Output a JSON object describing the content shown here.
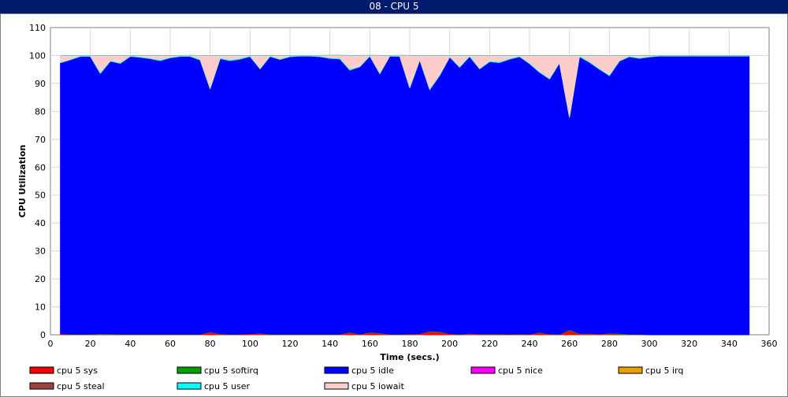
{
  "window": {
    "title": "08 - CPU 5"
  },
  "chart_data": {
    "type": "area",
    "stacked": true,
    "title": "08 - CPU 5",
    "xlabel": "Time (secs.)",
    "ylabel": "CPU Utilization",
    "xlim": [
      0,
      360
    ],
    "ylim": [
      0,
      110
    ],
    "xticks": [
      0,
      20,
      40,
      60,
      80,
      100,
      120,
      140,
      160,
      180,
      200,
      220,
      240,
      260,
      280,
      300,
      320,
      340,
      360
    ],
    "yticks": [
      0,
      10,
      20,
      30,
      40,
      50,
      60,
      70,
      80,
      90,
      100,
      110
    ],
    "grid": true,
    "legend_position": "bottom",
    "x": [
      5,
      10,
      15,
      20,
      25,
      30,
      35,
      40,
      45,
      50,
      55,
      60,
      65,
      70,
      75,
      80,
      85,
      90,
      95,
      100,
      105,
      110,
      115,
      120,
      125,
      130,
      135,
      140,
      145,
      150,
      155,
      160,
      165,
      170,
      175,
      180,
      185,
      190,
      195,
      200,
      205,
      210,
      215,
      220,
      225,
      230,
      235,
      240,
      245,
      250,
      255,
      260,
      265,
      270,
      275,
      280,
      285,
      290,
      295,
      300,
      305,
      310,
      315,
      320,
      325,
      330,
      335,
      340,
      345,
      350
    ],
    "series": [
      {
        "name": "cpu 5 sys",
        "color": "#ff0000",
        "values": [
          0.3,
          0.1,
          0.1,
          0.1,
          0.2,
          0.1,
          0.1,
          0.1,
          0.1,
          0.1,
          0.1,
          0.1,
          0.1,
          0.1,
          0.1,
          0.9,
          0.2,
          0.1,
          0.1,
          0.3,
          0.4,
          0.1,
          0.1,
          0.1,
          0.1,
          0.1,
          0.1,
          0.1,
          0.1,
          0.8,
          0.1,
          0.8,
          0.5,
          0.1,
          0.1,
          0.2,
          0.3,
          1.2,
          1.0,
          0.3,
          0.1,
          0.3,
          0.2,
          0.2,
          0.2,
          0.1,
          0.2,
          0.1,
          0.7,
          0.2,
          0.1,
          1.6,
          0.3,
          0.3,
          0.2,
          0.3,
          0.2,
          0.1,
          0.1,
          0,
          0,
          0,
          0,
          0,
          0,
          0,
          0,
          0,
          0,
          0
        ]
      },
      {
        "name": "cpu 5 softirq",
        "color": "#00a000",
        "values": [
          0.1,
          0.1,
          0.1,
          0.1,
          0.2,
          0.2,
          0.1,
          0.1,
          0.1,
          0.1,
          0.1,
          0.1,
          0.1,
          0.1,
          0.1,
          0.2,
          0.2,
          0.1,
          0.1,
          0.1,
          0.2,
          0.1,
          0.1,
          0.1,
          0.1,
          0.1,
          0.1,
          0.1,
          0.1,
          0.2,
          0.1,
          0.2,
          0.2,
          0.1,
          0.1,
          0.1,
          0.1,
          0.2,
          0.2,
          0.1,
          0.1,
          0.2,
          0.1,
          0.1,
          0.1,
          0.1,
          0.1,
          0.1,
          0.2,
          0.1,
          0.1,
          0.3,
          0.2,
          0.2,
          0.1,
          0.3,
          0.3,
          0.1,
          0.1,
          0,
          0,
          0,
          0,
          0,
          0,
          0,
          0,
          0,
          0,
          0
        ]
      },
      {
        "name": "cpu 5 idle",
        "color": "#0000ff",
        "values": [
          97.0,
          98.3,
          99.5,
          99.5,
          93.2,
          97.7,
          97.0,
          99.5,
          99.2,
          98.7,
          98.0,
          99.0,
          99.5,
          99.5,
          98.2,
          87.0,
          98.5,
          98.0,
          98.5,
          99.3,
          94.6,
          99.5,
          98.4,
          99.4,
          99.6,
          99.6,
          99.4,
          98.8,
          98.6,
          93.8,
          95.8,
          98.8,
          92.8,
          99.6,
          99.5,
          88.1,
          98.0,
          86.4,
          91.7,
          99.1,
          95.6,
          99.2,
          94.9,
          97.5,
          97.2,
          98.5,
          99.3,
          96.9,
          93.1,
          91.3,
          97.1,
          76.0,
          99.1,
          97.1,
          94.8,
          92.2,
          97.5,
          99.4,
          98.8,
          99.5,
          99.8,
          99.8,
          99.8,
          99.8,
          99.8,
          99.8,
          99.8,
          99.8,
          99.8,
          99.8
        ]
      },
      {
        "name": "cpu 5 nice",
        "color": "#ff00ff",
        "values": [
          0,
          0,
          0,
          0,
          0,
          0,
          0,
          0,
          0,
          0,
          0,
          0,
          0,
          0,
          0,
          0,
          0,
          0,
          0,
          0,
          0,
          0,
          0,
          0,
          0,
          0,
          0,
          0,
          0,
          0,
          0,
          0,
          0,
          0,
          0,
          0,
          0,
          0,
          0,
          0,
          0,
          0,
          0,
          0,
          0,
          0,
          0,
          0,
          0,
          0,
          0,
          0,
          0,
          0,
          0,
          0,
          0,
          0,
          0,
          0,
          0,
          0,
          0,
          0,
          0,
          0,
          0,
          0,
          0,
          0
        ]
      },
      {
        "name": "cpu 5 irq",
        "color": "#e8a000",
        "values": [
          0,
          0,
          0,
          0,
          0,
          0,
          0,
          0,
          0,
          0,
          0,
          0,
          0,
          0,
          0,
          0,
          0,
          0,
          0,
          0,
          0,
          0,
          0,
          0,
          0,
          0,
          0,
          0,
          0,
          0,
          0,
          0,
          0,
          0,
          0,
          0,
          0,
          0,
          0,
          0,
          0,
          0,
          0,
          0,
          0,
          0,
          0,
          0,
          0,
          0,
          0,
          0,
          0,
          0,
          0,
          0,
          0,
          0,
          0,
          0,
          0,
          0,
          0,
          0,
          0,
          0,
          0,
          0,
          0,
          0
        ]
      },
      {
        "name": "cpu 5 steal",
        "color": "#a04040",
        "values": [
          0,
          0,
          0,
          0,
          0,
          0,
          0,
          0,
          0,
          0,
          0,
          0,
          0,
          0,
          0,
          0,
          0,
          0,
          0,
          0,
          0,
          0,
          0,
          0,
          0,
          0,
          0,
          0,
          0,
          0,
          0,
          0,
          0,
          0,
          0,
          0,
          0,
          0,
          0,
          0,
          0,
          0,
          0,
          0,
          0,
          0,
          0,
          0,
          0,
          0,
          0,
          0,
          0,
          0,
          0,
          0,
          0,
          0,
          0,
          0,
          0,
          0,
          0,
          0,
          0,
          0,
          0,
          0,
          0,
          0
        ]
      },
      {
        "name": "cpu 5 user",
        "color": "#00ffff",
        "values": [
          0.2,
          0.2,
          0.2,
          0.2,
          0.4,
          0.2,
          0.3,
          0.2,
          0.2,
          0.2,
          0.3,
          0.2,
          0.2,
          0.2,
          0.3,
          0.4,
          0.3,
          0.3,
          0.3,
          0.2,
          0.3,
          0.2,
          0.2,
          0.2,
          0.2,
          0.2,
          0.2,
          0.2,
          0.3,
          0.3,
          0.2,
          0.3,
          0.3,
          0.2,
          0.2,
          0.3,
          0.3,
          0.4,
          0.3,
          0.2,
          0.3,
          0.3,
          0.3,
          0.3,
          0.3,
          0.3,
          0.2,
          0.3,
          0.3,
          0.3,
          0.3,
          0.4,
          0.3,
          0.3,
          0.3,
          0.3,
          0.3,
          0.2,
          0.2,
          0.2,
          0.2,
          0.2,
          0.2,
          0.2,
          0.2,
          0.2,
          0.2,
          0.2,
          0.2,
          0.2
        ]
      },
      {
        "name": "cpu 5 iowait",
        "color": "#ffcccc",
        "values": [
          2.4,
          1.3,
          0.1,
          0.1,
          6.0,
          1.8,
          2.5,
          0.1,
          0.4,
          0.9,
          1.5,
          0.6,
          0.1,
          0.2,
          1.3,
          11.5,
          0.8,
          1.5,
          1.0,
          0.1,
          4.5,
          0.1,
          1.2,
          0.2,
          0.0,
          0.0,
          0.2,
          0.9,
          1.0,
          4.9,
          3.8,
          0.0,
          6.2,
          0.0,
          0.2,
          11.3,
          1.3,
          11.8,
          6.8,
          0.3,
          3.9,
          0.0,
          4.5,
          1.9,
          2.2,
          1.0,
          0.2,
          2.6,
          5.7,
          8.1,
          2.4,
          21.7,
          0.1,
          2.1,
          4.6,
          6.9,
          1.7,
          0.2,
          0.8,
          0.3,
          0,
          0,
          0,
          0,
          0,
          0,
          0,
          0,
          0,
          0
        ]
      }
    ]
  }
}
